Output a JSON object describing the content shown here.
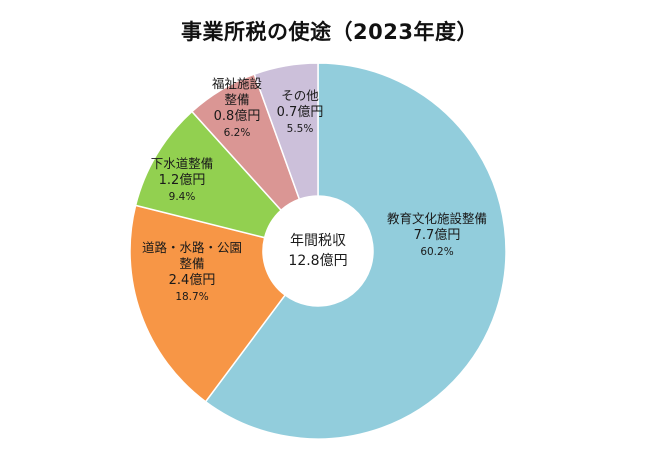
{
  "chart_data": {
    "type": "pie",
    "variant": "donut",
    "title": "事業所税の使途（2023年度）",
    "center_label": [
      "年間税収",
      "12.8億円"
    ],
    "slices": [
      {
        "label_lines": [
          "教育文化施設整備"
        ],
        "value": 7.7,
        "value_text": "7.7億円",
        "percent": 60.2,
        "percent_text": "60.2%",
        "color": "#92cddc"
      },
      {
        "label_lines": [
          "道路・水路・公園",
          "整備"
        ],
        "value": 2.4,
        "value_text": "2.4億円",
        "percent": 18.7,
        "percent_text": "18.7%",
        "color": "#f79646"
      },
      {
        "label_lines": [
          "下水道整備"
        ],
        "value": 1.2,
        "value_text": "1.2億円",
        "percent": 9.4,
        "percent_text": "9.4%",
        "color": "#92d050"
      },
      {
        "label_lines": [
          "福祉施設",
          "整備"
        ],
        "value": 0.8,
        "value_text": "0.8億円",
        "percent": 6.2,
        "percent_text": "6.2%",
        "color": "#da9694"
      },
      {
        "label_lines": [
          "その他"
        ],
        "value": 0.7,
        "value_text": "0.7億円",
        "percent": 5.5,
        "percent_text": "5.5%",
        "color": "#ccc0da"
      }
    ]
  }
}
